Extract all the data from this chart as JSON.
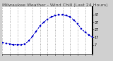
{
  "title": "Milwaukee Weather - Wind Chill (Last 24 Hours)",
  "bg_color": "#d0d0d0",
  "plot_bg_color": "#ffffff",
  "line_color": "#0000cc",
  "marker_color": "#0000cc",
  "grid_color": "#888888",
  "x_values": [
    0,
    1,
    2,
    3,
    4,
    5,
    6,
    7,
    8,
    9,
    10,
    11,
    12,
    13,
    14,
    15,
    16,
    17,
    18,
    19,
    20,
    21,
    22,
    23,
    24
  ],
  "y_values": [
    10,
    9,
    8,
    7,
    7,
    7,
    8,
    12,
    18,
    25,
    32,
    37,
    41,
    44,
    46,
    47,
    47,
    46,
    44,
    40,
    35,
    28,
    24,
    20,
    17
  ],
  "ylim": [
    -5,
    57
  ],
  "yticks": [
    7,
    17,
    27,
    37,
    47
  ],
  "ytick_labels": [
    "7",
    "17",
    "27",
    "37",
    "47"
  ],
  "num_x_gridlines": 13,
  "xlim": [
    0,
    24
  ],
  "title_fontsize": 4.5,
  "tick_fontsize": 3.5,
  "linewidth": 0.7,
  "markersize": 1.5
}
